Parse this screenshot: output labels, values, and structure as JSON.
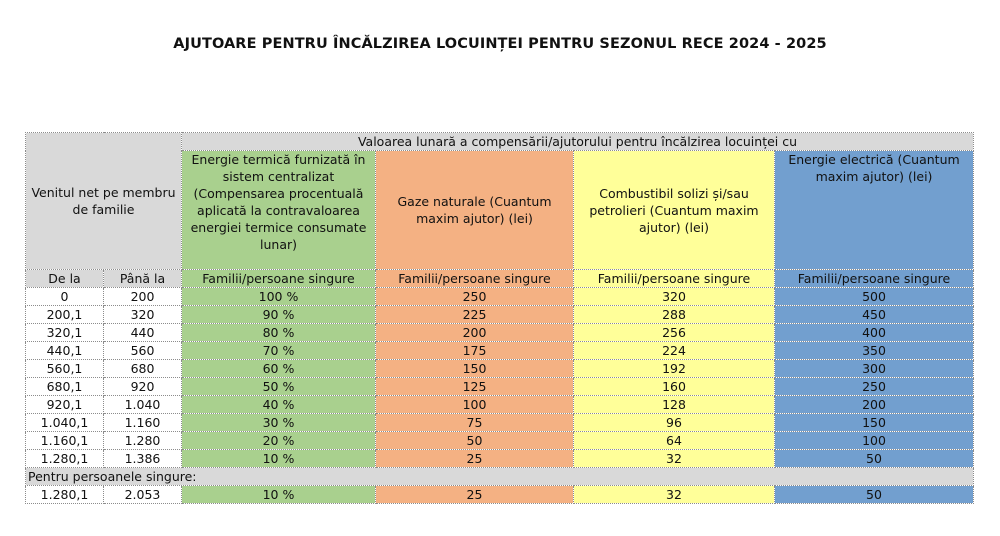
{
  "title": "AJUTOARE PENTRU ÎNCĂLZIREA LOCUINȚEI PENTRU SEZONUL RECE 2024 - 2025",
  "table": {
    "income_header": "Venitul net pe membru de familie",
    "group_header": "Valoarea lunară a compensării/ajutorului pentru încălzirea locuinței cu",
    "columns": {
      "thermal": "Energie termică furnizată în sistem centralizat (Compensarea procentuală aplicată la contravaloarea energiei termice consumate lunar)",
      "gas": "Gaze naturale (Cuantum maxim ajutor) (lei)",
      "solid": "Combustibil solizi și/sau petrolieri (Cuantum maxim ajutor) (lei)",
      "electric": "Energie electrică (Cuantum maxim ajutor) (lei)"
    },
    "from_label": "De la",
    "to_label": "Până la",
    "subheader": "Familii/persoane singure",
    "rows": [
      {
        "from": "0",
        "to": "200",
        "thermal": "100 %",
        "gas": "250",
        "solid": "320",
        "electric": "500"
      },
      {
        "from": "200,1",
        "to": "320",
        "thermal": "90 %",
        "gas": "225",
        "solid": "288",
        "electric": "450"
      },
      {
        "from": "320,1",
        "to": "440",
        "thermal": "80 %",
        "gas": "200",
        "solid": "256",
        "electric": "400"
      },
      {
        "from": "440,1",
        "to": "560",
        "thermal": "70 %",
        "gas": "175",
        "solid": "224",
        "electric": "350"
      },
      {
        "from": "560,1",
        "to": "680",
        "thermal": "60 %",
        "gas": "150",
        "solid": "192",
        "electric": "300"
      },
      {
        "from": "680,1",
        "to": "920",
        "thermal": "50 %",
        "gas": "125",
        "solid": "160",
        "electric": "250"
      },
      {
        "from": "920,1",
        "to": "1.040",
        "thermal": "40 %",
        "gas": "100",
        "solid": "128",
        "electric": "200"
      },
      {
        "from": "1.040,1",
        "to": "1.160",
        "thermal": "30 %",
        "gas": "75",
        "solid": "96",
        "electric": "150"
      },
      {
        "from": "1.160,1",
        "to": "1.280",
        "thermal": "20 %",
        "gas": "50",
        "solid": "64",
        "electric": "100"
      },
      {
        "from": "1.280,1",
        "to": "1.386",
        "thermal": "10 %",
        "gas": "25",
        "solid": "32",
        "electric": "50"
      }
    ],
    "singles_label": "Pentru persoanele singure:",
    "singles_row": {
      "from": "1.280,1",
      "to": "2.053",
      "thermal": "10 %",
      "gas": "25",
      "solid": "32",
      "electric": "50"
    }
  },
  "colors": {
    "gray": "#d9d9d9",
    "thermal": "#a9d08e",
    "gas": "#f4b183",
    "solid": "#ffff99",
    "electric": "#729fcf"
  }
}
